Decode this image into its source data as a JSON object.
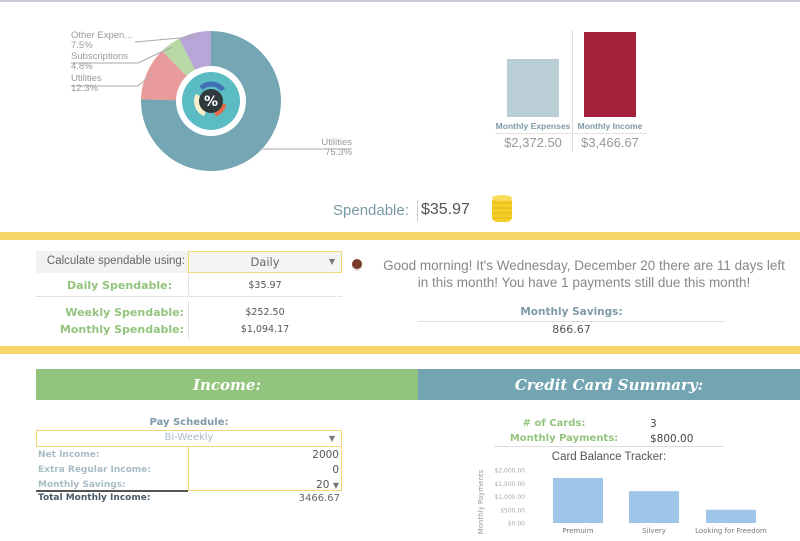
{
  "pie_chart": {
    "slices": [
      {
        "label": "Utilities",
        "percent": "75.3%",
        "value": 75.3,
        "color": "#74a6b3"
      },
      {
        "label": "Utilities",
        "percent": "12.3%",
        "value": 12.3,
        "color": "#e99b9b"
      },
      {
        "label": "Subscriptions",
        "percent": "4.8%",
        "value": 4.8,
        "color": "#b7d9a5"
      },
      {
        "label": "Other Expen...",
        "percent": "7.5%",
        "value": 7.5,
        "color": "#b9a6d9"
      }
    ],
    "center_icon": "percent-icon"
  },
  "summary_bars": {
    "expenses": {
      "label": "Monthly Expenses",
      "value": "$2,372.50",
      "amount": 2372.5,
      "color": "#b9ced5"
    },
    "income": {
      "label": "Monthly Income",
      "value": "$3,466.67",
      "amount": 3466.67,
      "color": "#a3213a"
    }
  },
  "spendable": {
    "label": "Spendable:",
    "value": "$35.97",
    "icon": "coin-stack-icon"
  },
  "calc": {
    "label": "Calculate spendable using:",
    "selected": "Daily",
    "daily_label": "Daily  Spendable:",
    "daily_value": "$35.97",
    "weekly_label": "Weekly Spendable:",
    "weekly_value": "$252.50",
    "monthly_label": "Monthly Spendable:",
    "monthly_value": "$1,094.17"
  },
  "greeting": {
    "line1": "Good morning!  It's Wednesday, December 20 there are 11 days left",
    "line2": "in this month! You have 1 payments still due this month!",
    "savings_label": "Monthly Savings:",
    "savings_value": "866.67"
  },
  "income": {
    "header": "Income:",
    "pay_schedule_label": "Pay Schedule:",
    "pay_schedule": "Bi-Weekly",
    "rows": [
      {
        "label": "Net Income:",
        "value": "2000"
      },
      {
        "label": "Extra Regular Income:",
        "value": "0"
      },
      {
        "label": "Monthly Savings:",
        "value": "20"
      }
    ],
    "total_label": "Total Monthly Income:",
    "total_value": "3466.67"
  },
  "credit": {
    "header": "Credit Card Summary:",
    "cards_label": "# of Cards:",
    "cards_value": "3",
    "payments_label": "Monthly Payments:",
    "payments_value": "$800.00"
  },
  "chart_data": {
    "type": "bar",
    "title": "Card Balance Tracker:",
    "ylabel": "Monthly Payments",
    "categories": [
      "Premuim",
      "Silvery",
      "Looking for Freedom"
    ],
    "values": [
      1700,
      1200,
      500
    ],
    "ylim": [
      0,
      2000
    ],
    "yticks": [
      "$0.00",
      "$500.00",
      "$1,000.00",
      "$1,500.00",
      "$2,000.00"
    ],
    "color": "#9fc5e8",
    "grid": false
  }
}
